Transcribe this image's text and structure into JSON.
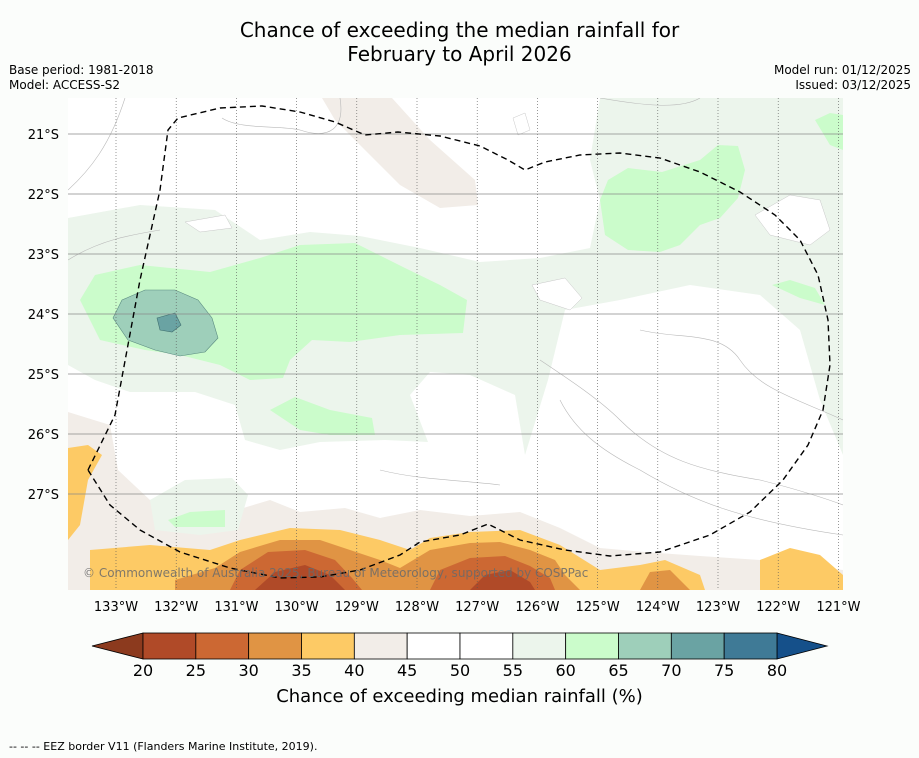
{
  "title": {
    "line1": "Chance of exceeding the median rainfall for",
    "line2": "February to April 2026"
  },
  "meta": {
    "base_period": "Base period: 1981-2018",
    "model": "Model: ACCESS-S2",
    "model_run": "Model run: 01/12/2025",
    "issued": "Issued: 03/12/2025"
  },
  "map": {
    "lat_labels": [
      "21°S",
      "22°S",
      "23°S",
      "24°S",
      "25°S",
      "26°S",
      "27°S"
    ],
    "lon_labels": [
      "133°W",
      "132°W",
      "131°W",
      "130°W",
      "129°W",
      "128°W",
      "127°W",
      "126°W",
      "125°W",
      "124°W",
      "123°W",
      "122°W",
      "121°W"
    ],
    "copyright": "© Commonwealth of Australia 2025, Bureau of Meteorology, supported by COSPPac"
  },
  "colorbar": {
    "ticks": [
      "20",
      "25",
      "30",
      "35",
      "40",
      "45",
      "50",
      "55",
      "60",
      "65",
      "70",
      "75",
      "80"
    ],
    "colors": [
      "#b04a28",
      "#cc6833",
      "#e09444",
      "#fdca65",
      "#f2ede8",
      "#ffffff",
      "#ffffff",
      "#ecf5ec",
      "#cbfccb",
      "#9ecfba",
      "#6aa3a3",
      "#3f7a96"
    ],
    "low_color": "#8c3a1e",
    "high_color": "#15508a",
    "label": "Chance of exceeding median rainfall (%)"
  },
  "footnote": "--  --  -- EEZ border V11 (Flanders Marine Institute, 2019)."
}
